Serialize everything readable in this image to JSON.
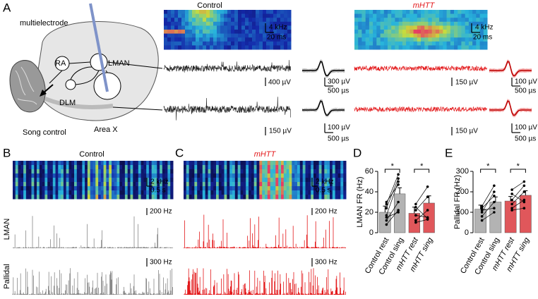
{
  "figure": {
    "panel_a": {
      "label": "A",
      "control_title": "Control",
      "mhtt_title": "mHTT",
      "diagram": {
        "electrode": "multielectrode",
        "ra": "RA",
        "lman": "LMAN",
        "dlm": "DLM",
        "song_control": "Song control",
        "area_x": "Area X"
      },
      "scale_labels": [
        "4 kHz",
        "20 ms",
        "4 kHz",
        "20 ms",
        "400 µV",
        "300 µV",
        "500 µs",
        "150 µV",
        "100 µV",
        "500 µs",
        "150 µV",
        "100 µV",
        "500 µs",
        "150 µV",
        "100 µV",
        "500 µs"
      ]
    },
    "panel_b": {
      "label": "B",
      "title": "Control",
      "row_labels": [
        "LMAN",
        "Pallidal"
      ],
      "scale_labels": [
        "2 kHz",
        "0.5 s",
        "200 Hz",
        "300 Hz"
      ]
    },
    "panel_c": {
      "label": "C",
      "title": "mHTT",
      "scale_labels": [
        "2 kHz",
        "0.5 s",
        "200 Hz",
        "300 Hz"
      ]
    }
  },
  "chart_data": [
    {
      "type": "bar",
      "panel": "D",
      "ylabel": "LMAN FR (Hz)",
      "categories": [
        "Control rest",
        "Control sing",
        "mHTT rest",
        "mHTT sing"
      ],
      "values": [
        20,
        38,
        19,
        29
      ],
      "errors": [
        6,
        6,
        6,
        7
      ],
      "colors": [
        "#b3b3b3",
        "#b3b3b3",
        "#e0575b",
        "#e0575b"
      ],
      "label_colors": [
        "#000000",
        "#000000",
        "#e31a1c",
        "#e31a1c"
      ],
      "paired_points": [
        [
          [
            28,
            57
          ],
          [
            24,
            53
          ],
          [
            17,
            50
          ],
          [
            30,
            47
          ],
          [
            12,
            30
          ],
          [
            8,
            22
          ],
          [
            15,
            20
          ]
        ],
        [
          [
            28,
            45
          ],
          [
            22,
            35
          ],
          [
            12,
            22
          ],
          [
            17,
            15
          ],
          [
            10,
            13
          ],
          [
            25,
            14
          ]
        ]
      ],
      "annotations": [
        "*",
        "*"
      ],
      "ylim": [
        0,
        60
      ],
      "yticks": [
        0,
        20,
        40,
        60
      ]
    },
    {
      "type": "bar",
      "panel": "E",
      "ylabel": "Pallidal FR (Hz)",
      "categories": [
        "Control rest",
        "Control sing",
        "mHTT rest",
        "mHTT sing"
      ],
      "values": [
        115,
        150,
        155,
        183
      ],
      "errors": [
        20,
        25,
        22,
        22
      ],
      "colors": [
        "#b3b3b3",
        "#b3b3b3",
        "#e0575b",
        "#e0575b"
      ],
      "label_colors": [
        "#000000",
        "#000000",
        "#e31a1c",
        "#e31a1c"
      ],
      "paired_points": [
        [
          [
            130,
            230
          ],
          [
            100,
            200
          ],
          [
            120,
            180
          ],
          [
            80,
            150
          ],
          [
            110,
            120
          ],
          [
            60,
            100
          ]
        ],
        [
          [
            210,
            250
          ],
          [
            160,
            230
          ],
          [
            140,
            200
          ],
          [
            190,
            150
          ],
          [
            120,
            160
          ],
          [
            110,
            120
          ]
        ]
      ],
      "annotations": [
        "*",
        "*"
      ],
      "ylim": [
        0,
        300
      ],
      "yticks": [
        0,
        100,
        200,
        300
      ]
    }
  ]
}
